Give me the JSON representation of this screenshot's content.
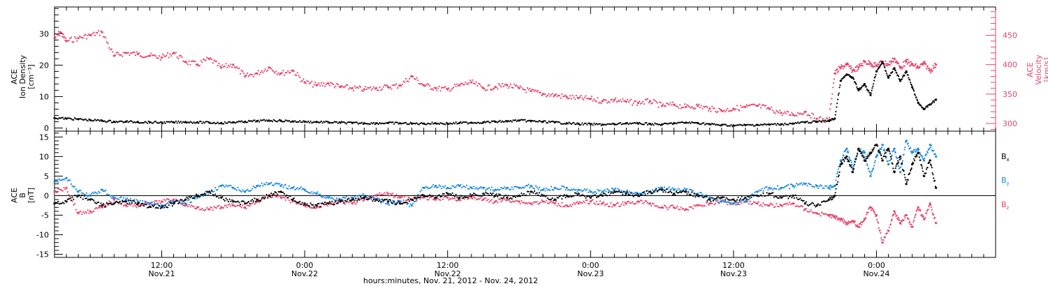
{
  "colors": {
    "black": "#000000",
    "magenta": "#e8436a",
    "blue": "#1a8ae0"
  },
  "x_axis": {
    "title": "hours:minutes, Nov. 21, 2012 - Nov. 24, 2012",
    "start_hour": 3,
    "end_hour": 82,
    "major_ticks": [
      {
        "hour": 12,
        "time": "12:00",
        "date": "Nov.21"
      },
      {
        "hour": 24,
        "time": "0:00",
        "date": "Nov.22"
      },
      {
        "hour": 36,
        "time": "12:00",
        "date": "Nov.22"
      },
      {
        "hour": 48,
        "time": "0:00",
        "date": "Nov.23"
      },
      {
        "hour": 60,
        "time": "12:00",
        "date": "Nov.23"
      },
      {
        "hour": 72,
        "time": "0:00",
        "date": "Nov.24"
      }
    ]
  },
  "chart_data": [
    {
      "type": "scatter",
      "panel": "top",
      "left_axis": {
        "label_lines": [
          "ACE",
          "Ion Density",
          "[cm⁻³]"
        ],
        "ylim": [
          -1,
          38.5
        ],
        "ticks": [
          0,
          10,
          20,
          30
        ]
      },
      "right_axis": {
        "label_lines": [
          "ACE",
          "Velocity",
          "[km/s]"
        ],
        "ylim": [
          287,
          498
        ],
        "ticks": [
          300,
          350,
          400,
          450
        ]
      },
      "series": [
        {
          "axis": "left",
          "color": "#000000",
          "x_hours": [
            3.0,
            4.0,
            5.0,
            6.0,
            7.0,
            8.0,
            9.0,
            10.0,
            11.0,
            12.0,
            13.0,
            14.0,
            15.0,
            16.0,
            17.0,
            18.0,
            19.0,
            20.0,
            21.0,
            22.0,
            23.0,
            24.0,
            25.0,
            26.0,
            27.0,
            28.0,
            29.0,
            30.0,
            31.0,
            32.0,
            33.0,
            34.0,
            35.0,
            36.0,
            37.0,
            38.0,
            39.0,
            40.0,
            41.0,
            42.0,
            43.0,
            44.0,
            45.0,
            46.0,
            47.0,
            48.0,
            49.0,
            50.0,
            51.0,
            52.0,
            53.0,
            54.0,
            55.0,
            56.0,
            57.0,
            58.0,
            59.0,
            60.0,
            61.0,
            62.0,
            63.0,
            64.0,
            65.0,
            66.0,
            67.0,
            68.0,
            68.5,
            69.0,
            69.5,
            70.0,
            70.5,
            71.0,
            71.5,
            72.0,
            72.5,
            73.0,
            73.5,
            74.0,
            74.5,
            75.0,
            75.5,
            76.0,
            76.5,
            77.0
          ],
          "values": [
            3.2,
            3.0,
            2.8,
            2.5,
            2.3,
            2.0,
            2.0,
            1.9,
            1.8,
            1.7,
            1.8,
            1.9,
            1.8,
            1.7,
            1.6,
            1.8,
            2.0,
            2.2,
            2.4,
            2.3,
            2.1,
            2.0,
            1.9,
            1.8,
            1.7,
            1.6,
            1.5,
            1.5,
            1.6,
            1.5,
            1.4,
            1.4,
            1.5,
            1.4,
            1.6,
            1.7,
            1.8,
            2.0,
            2.1,
            2.4,
            2.2,
            2.0,
            1.8,
            1.5,
            1.3,
            1.2,
            1.1,
            1.2,
            1.5,
            1.4,
            1.3,
            1.1,
            1.5,
            1.7,
            1.6,
            1.2,
            0.9,
            0.8,
            0.9,
            1.0,
            1.1,
            1.2,
            1.4,
            1.8,
            2.0,
            2.3,
            3.0,
            15.0,
            17.0,
            16.0,
            12.0,
            14.0,
            10.5,
            18.0,
            21.0,
            16.0,
            19.0,
            15.0,
            18.0,
            13.0,
            8.0,
            6.0,
            7.5,
            9.0
          ]
        },
        {
          "axis": "right",
          "color": "#e8436a",
          "x_hours": [
            3.0,
            3.5,
            4.0,
            5.0,
            6.0,
            7.0,
            8.0,
            9.0,
            10.0,
            11.0,
            12.0,
            13.0,
            14.0,
            15.0,
            16.0,
            17.0,
            18.0,
            19.0,
            20.0,
            21.0,
            22.0,
            23.0,
            24.0,
            25.0,
            26.0,
            27.0,
            28.0,
            29.0,
            30.0,
            31.0,
            32.0,
            33.0,
            34.0,
            35.0,
            36.0,
            37.0,
            38.0,
            39.0,
            40.0,
            41.0,
            42.0,
            43.0,
            44.0,
            45.0,
            46.0,
            47.0,
            48.0,
            49.0,
            50.0,
            51.0,
            52.0,
            53.0,
            54.0,
            55.0,
            56.0,
            57.0,
            58.0,
            59.0,
            60.0,
            61.0,
            62.0,
            63.0,
            64.0,
            65.0,
            66.0,
            67.0,
            68.0,
            68.5,
            69.0,
            69.5,
            70.0,
            70.5,
            71.0,
            71.5,
            72.0,
            72.5,
            73.0,
            73.5,
            74.0,
            74.5,
            75.0,
            75.5,
            76.0,
            76.5,
            77.0
          ],
          "values": [
            445,
            455,
            440,
            445,
            450,
            455,
            415,
            420,
            418,
            415,
            412,
            420,
            405,
            400,
            410,
            395,
            400,
            380,
            385,
            395,
            385,
            390,
            370,
            365,
            368,
            362,
            360,
            358,
            360,
            362,
            365,
            380,
            365,
            360,
            358,
            365,
            370,
            360,
            362,
            365,
            360,
            355,
            350,
            348,
            345,
            343,
            342,
            338,
            340,
            337,
            335,
            338,
            330,
            332,
            328,
            330,
            325,
            322,
            325,
            328,
            330,
            325,
            318,
            315,
            320,
            308,
            305,
            385,
            395,
            400,
            390,
            395,
            405,
            402,
            398,
            405,
            400,
            410,
            395,
            405,
            400,
            395,
            402,
            390,
            400
          ]
        }
      ]
    },
    {
      "type": "scatter",
      "panel": "bottom",
      "left_axis": {
        "label_lines": [
          "ACE",
          "B",
          "[nT]"
        ],
        "ylim": [
          -15.8,
          16.5
        ],
        "ticks": [
          -15,
          -10,
          -5,
          0,
          5,
          10,
          15
        ]
      },
      "zero_line": true,
      "series": [
        {
          "name": "Bx",
          "color": "#000000",
          "x_hours": [
            3.0,
            4.0,
            5.0,
            6.0,
            7.0,
            8.0,
            9.0,
            10.0,
            11.0,
            12.0,
            13.0,
            14.0,
            15.0,
            16.0,
            17.0,
            18.0,
            19.0,
            20.0,
            21.0,
            22.0,
            23.0,
            24.0,
            25.0,
            26.0,
            27.0,
            28.0,
            29.0,
            30.0,
            31.0,
            32.0,
            33.0,
            34.0,
            35.0,
            36.0,
            37.0,
            38.0,
            39.0,
            40.0,
            41.0,
            42.0,
            43.0,
            44.0,
            45.0,
            46.0,
            47.0,
            48.0,
            49.0,
            50.0,
            51.0,
            52.0,
            53.0,
            54.0,
            55.0,
            56.0,
            57.0,
            58.0,
            59.0,
            60.0,
            61.0,
            62.0,
            63.0,
            64.0,
            65.0,
            66.0,
            67.0,
            68.0,
            68.5,
            69.0,
            69.5,
            70.0,
            70.5,
            71.0,
            71.5,
            72.0,
            72.5,
            73.0,
            73.5,
            74.0,
            74.5,
            75.0,
            75.5,
            76.0,
            76.5,
            77.0
          ],
          "values": [
            -2.0,
            -1.5,
            0.0,
            -1.0,
            -2.5,
            -2.0,
            -1.5,
            -2.0,
            -2.8,
            -3.0,
            -2.0,
            -1.0,
            0.0,
            1.0,
            -0.5,
            -1.5,
            -2.0,
            -1.0,
            0.0,
            1.0,
            -1.0,
            -2.0,
            -2.5,
            -2.0,
            -1.5,
            -1.0,
            -0.5,
            -1.0,
            -1.5,
            -2.0,
            -1.0,
            0.0,
            -0.5,
            0.5,
            -0.5,
            0.0,
            0.5,
            0.0,
            -0.5,
            0.0,
            1.0,
            0.0,
            -1.0,
            0.0,
            0.5,
            -0.5,
            0.0,
            1.0,
            0.5,
            0.0,
            1.0,
            1.5,
            0.5,
            1.0,
            0.0,
            -1.0,
            -0.5,
            -1.0,
            -0.5,
            0.0,
            0.5,
            -0.5,
            0.0,
            -2.0,
            -2.5,
            -1.0,
            0.0,
            8.0,
            10.0,
            6.0,
            12.0,
            9.0,
            11.0,
            13.0,
            9.0,
            12.0,
            6.0,
            10.0,
            3.0,
            8.0,
            11.0,
            5.0,
            9.0,
            2.0
          ]
        },
        {
          "name": "By",
          "color": "#1a8ae0",
          "x_hours": [
            3.0,
            4.0,
            5.0,
            6.0,
            7.0,
            8.0,
            9.0,
            10.0,
            11.0,
            12.0,
            13.0,
            14.0,
            15.0,
            16.0,
            17.0,
            18.0,
            19.0,
            20.0,
            21.0,
            22.0,
            23.0,
            24.0,
            25.0,
            26.0,
            27.0,
            28.0,
            29.0,
            30.0,
            31.0,
            32.0,
            33.0,
            34.0,
            35.0,
            36.0,
            37.0,
            38.0,
            39.0,
            40.0,
            41.0,
            42.0,
            43.0,
            44.0,
            45.0,
            46.0,
            47.0,
            48.0,
            49.0,
            50.0,
            51.0,
            52.0,
            53.0,
            54.0,
            55.0,
            56.0,
            57.0,
            58.0,
            59.0,
            60.0,
            61.0,
            62.0,
            63.0,
            64.0,
            65.0,
            66.0,
            67.0,
            68.0,
            68.5,
            69.0,
            69.5,
            70.0,
            70.5,
            71.0,
            71.5,
            72.0,
            72.5,
            73.0,
            73.5,
            74.0,
            74.5,
            75.0,
            75.5,
            76.0,
            76.5,
            77.0
          ],
          "values": [
            3.5,
            4.5,
            1.0,
            0.0,
            1.5,
            -0.5,
            -1.0,
            -1.5,
            -2.0,
            -2.5,
            -1.5,
            -2.0,
            -0.5,
            1.0,
            2.5,
            2.0,
            1.0,
            2.5,
            3.0,
            2.5,
            2.0,
            1.5,
            0.5,
            -0.5,
            -1.0,
            -0.5,
            0.0,
            -1.0,
            -2.0,
            -1.5,
            -2.5,
            2.0,
            2.5,
            2.0,
            2.5,
            2.0,
            2.0,
            1.5,
            2.0,
            2.0,
            2.5,
            1.5,
            2.0,
            2.0,
            1.5,
            1.0,
            1.0,
            1.5,
            1.0,
            0.5,
            1.0,
            2.0,
            1.5,
            1.5,
            0.5,
            -0.5,
            -1.5,
            -2.0,
            -1.5,
            1.0,
            2.0,
            2.0,
            2.5,
            3.0,
            2.5,
            2.0,
            2.5,
            9.0,
            12.0,
            7.0,
            12.0,
            11.0,
            5.0,
            10.0,
            13.0,
            8.0,
            12.0,
            6.0,
            14.0,
            11.0,
            12.0,
            9.0,
            13.0,
            10.0
          ]
        },
        {
          "name": "Bz",
          "color": "#e8436a",
          "x_hours": [
            3.0,
            4.0,
            5.0,
            6.0,
            7.0,
            8.0,
            9.0,
            10.0,
            11.0,
            12.0,
            13.0,
            14.0,
            15.0,
            16.0,
            17.0,
            18.0,
            19.0,
            20.0,
            21.0,
            22.0,
            23.0,
            24.0,
            25.0,
            26.0,
            27.0,
            28.0,
            29.0,
            30.0,
            31.0,
            32.0,
            33.0,
            34.0,
            35.0,
            36.0,
            37.0,
            38.0,
            39.0,
            40.0,
            41.0,
            42.0,
            43.0,
            44.0,
            45.0,
            46.0,
            47.0,
            48.0,
            49.0,
            50.0,
            51.0,
            52.0,
            53.0,
            54.0,
            55.0,
            56.0,
            57.0,
            58.0,
            59.0,
            60.0,
            61.0,
            62.0,
            63.0,
            64.0,
            65.0,
            66.0,
            67.0,
            68.0,
            68.5,
            69.0,
            69.5,
            70.0,
            70.5,
            71.0,
            71.5,
            72.0,
            72.5,
            73.0,
            73.5,
            74.0,
            74.5,
            75.0,
            75.5,
            76.0,
            76.5,
            77.0
          ],
          "values": [
            1.0,
            2.0,
            -4.5,
            -4.0,
            -3.0,
            -1.0,
            -2.5,
            -2.5,
            -2.0,
            -1.5,
            -1.0,
            -2.5,
            -3.0,
            -3.5,
            -3.0,
            -2.5,
            -3.0,
            -1.5,
            0.0,
            -0.5,
            -1.5,
            -2.5,
            -3.0,
            -2.0,
            -1.5,
            -2.0,
            -1.0,
            0.0,
            0.5,
            -0.5,
            -1.0,
            -0.5,
            -1.0,
            -0.5,
            -1.0,
            -0.5,
            -1.0,
            -1.5,
            -1.0,
            -1.5,
            -2.0,
            -1.5,
            -2.0,
            -2.5,
            -2.0,
            -1.5,
            -2.0,
            -2.5,
            -2.0,
            -1.5,
            -2.0,
            -3.0,
            -3.0,
            -3.5,
            -2.5,
            -2.0,
            -1.5,
            -2.0,
            -1.5,
            -2.0,
            -2.5,
            -2.5,
            -2.0,
            -3.5,
            -4.5,
            -5.0,
            -5.5,
            -6.0,
            -7.0,
            -6.5,
            -8.0,
            -6.0,
            -3.0,
            -5.0,
            -12.0,
            -9.0,
            -4.0,
            -7.0,
            -5.0,
            -8.0,
            -3.0,
            -6.0,
            -2.0,
            -7.0
          ]
        }
      ]
    }
  ]
}
